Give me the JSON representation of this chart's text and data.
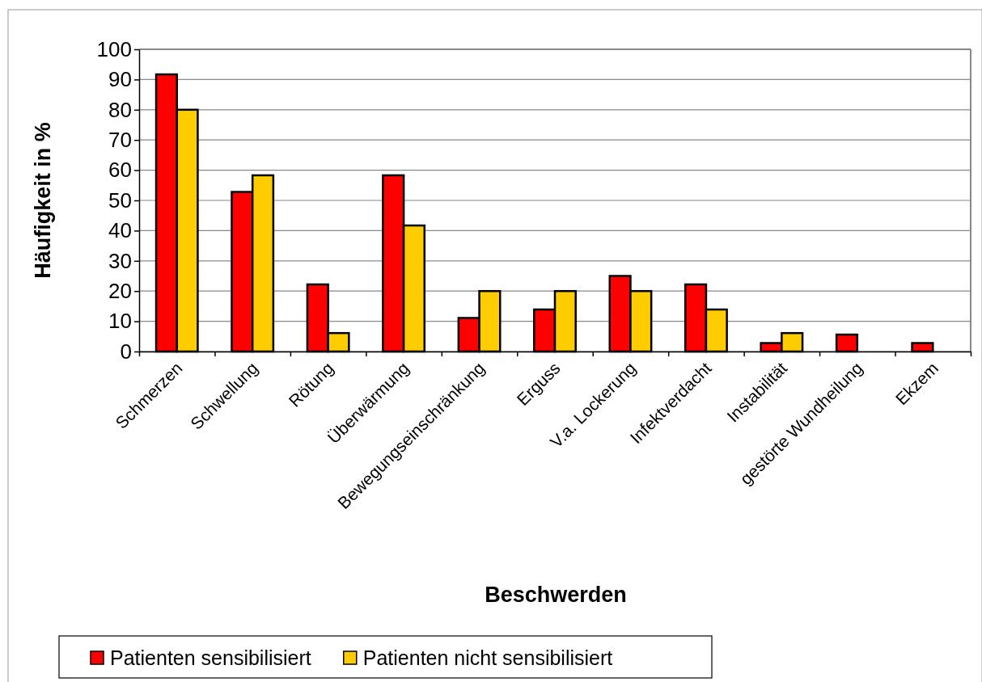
{
  "chart_data": {
    "type": "bar",
    "xlabel": "Beschwerden",
    "ylabel": "Häufigkeit in %",
    "categories": [
      "Schmerzen",
      "Schwellung",
      "Rötung",
      "Überwärmung",
      "Bewegungseinschränkung",
      "Erguss",
      "V.a. Lockerung",
      "Infektverdacht",
      "Instabilität",
      "gestörte Wundheilung",
      "Ekzem"
    ],
    "series": [
      {
        "name": "Patienten sensibilisiert",
        "color": "#ff0000",
        "values": [
          91.7,
          52.8,
          22.2,
          58.3,
          11.1,
          13.9,
          25,
          22.2,
          2.8,
          5.6,
          2.8
        ]
      },
      {
        "name": "Patienten nicht sensibilisiert",
        "color": "#ffcc00",
        "values": [
          80,
          58.3,
          6.1,
          41.7,
          20,
          20,
          20,
          13.9,
          6.1,
          0,
          0
        ]
      }
    ],
    "ylim": [
      0,
      100
    ],
    "yticks": [
      0,
      10,
      20,
      30,
      40,
      50,
      60,
      70,
      80,
      90,
      100
    ],
    "grid": "y",
    "legend": "bottom"
  }
}
